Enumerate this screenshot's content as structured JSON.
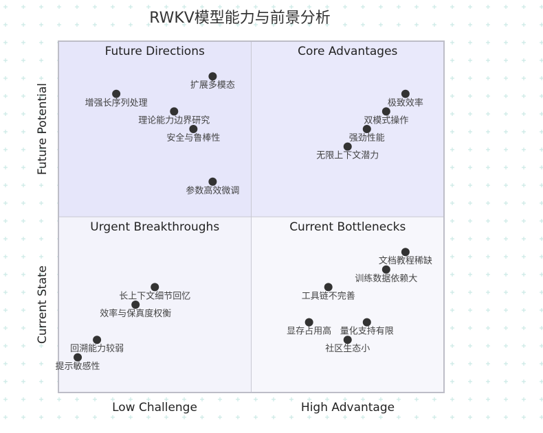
{
  "chart_data": {
    "type": "scatter",
    "title": "RWKV模型能力与前景分析",
    "x_axis": {
      "low_label": "Low Challenge",
      "high_label": "High Advantage",
      "range": [
        0,
        1
      ]
    },
    "y_axis": {
      "low_label": "Current State",
      "high_label": "Future Potential",
      "range": [
        0,
        1
      ]
    },
    "quadrants": [
      {
        "position": "top-left",
        "label": "Future Directions",
        "fill": "#e6e6fa"
      },
      {
        "position": "top-right",
        "label": "Core Advantages",
        "fill": "#e9e9fb"
      },
      {
        "position": "bottom-left",
        "label": "Urgent Breakthroughs",
        "fill": "#f3f3fb"
      },
      {
        "position": "bottom-right",
        "label": "Current Bottlenecks",
        "fill": "#f7f7fc"
      }
    ],
    "point_color": "#333333",
    "points": [
      {
        "label": "扩展多模态",
        "x": 0.4,
        "y": 0.9
      },
      {
        "label": "增强长序列处理",
        "x": 0.15,
        "y": 0.85
      },
      {
        "label": "理论能力边界研究",
        "x": 0.3,
        "y": 0.8
      },
      {
        "label": "安全与鲁棒性",
        "x": 0.35,
        "y": 0.75
      },
      {
        "label": "参数高效微调",
        "x": 0.4,
        "y": 0.6
      },
      {
        "label": "极致效率",
        "x": 0.9,
        "y": 0.85
      },
      {
        "label": "双模式操作",
        "x": 0.85,
        "y": 0.8
      },
      {
        "label": "强劲性能",
        "x": 0.8,
        "y": 0.75
      },
      {
        "label": "无限上下文潜力",
        "x": 0.75,
        "y": 0.7
      },
      {
        "label": "文档教程稀缺",
        "x": 0.9,
        "y": 0.4
      },
      {
        "label": "训练数据依赖大",
        "x": 0.85,
        "y": 0.35
      },
      {
        "label": "工具链不完善",
        "x": 0.7,
        "y": 0.3
      },
      {
        "label": "显存占用高",
        "x": 0.65,
        "y": 0.2
      },
      {
        "label": "量化支持有限",
        "x": 0.8,
        "y": 0.2
      },
      {
        "label": "社区生态小",
        "x": 0.75,
        "y": 0.15
      },
      {
        "label": "长上下文细节回忆",
        "x": 0.25,
        "y": 0.3
      },
      {
        "label": "效率与保真度权衡",
        "x": 0.2,
        "y": 0.25
      },
      {
        "label": "回溯能力较弱",
        "x": 0.1,
        "y": 0.15
      },
      {
        "label": "提示敏感性",
        "x": 0.05,
        "y": 0.1
      }
    ]
  }
}
